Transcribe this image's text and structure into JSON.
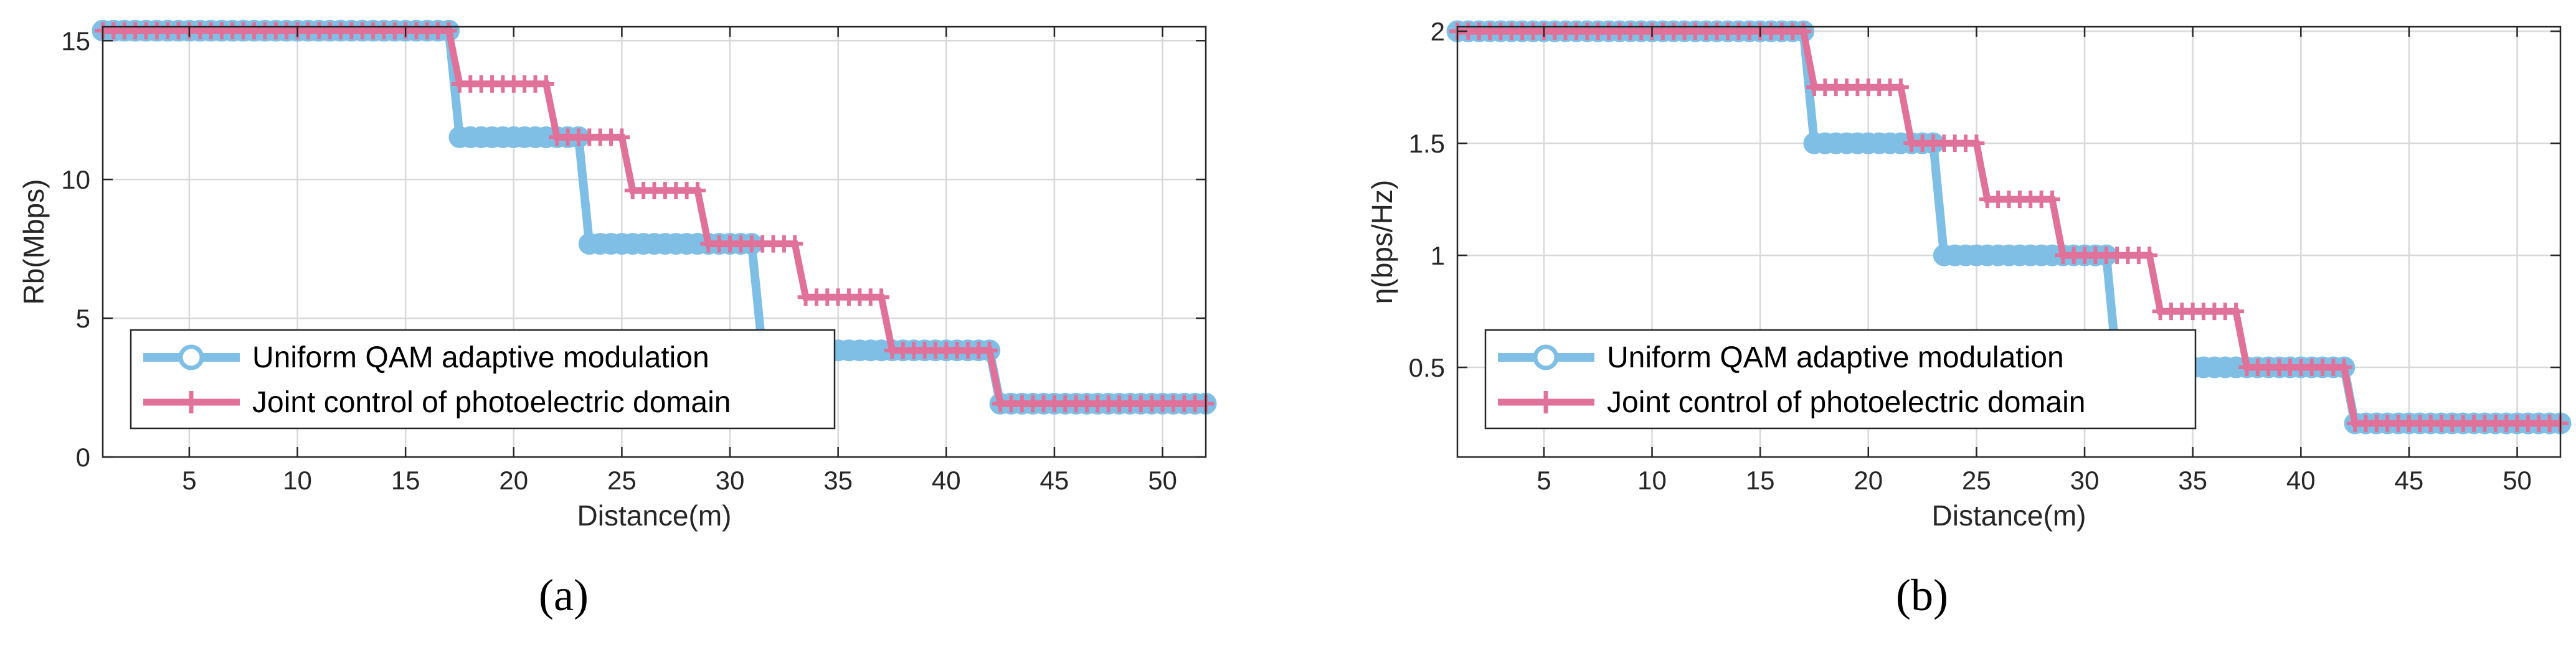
{
  "chart_data": [
    {
      "type": "line",
      "caption": "(a)",
      "xlabel": "Distance(m)",
      "ylabel": "Rb(Mbps)",
      "xlim": [
        1,
        52
      ],
      "ylim": [
        0,
        15.5
      ],
      "xticks": [
        5,
        10,
        15,
        20,
        25,
        30,
        35,
        40,
        45,
        50
      ],
      "yticks": [
        0,
        5,
        10,
        15
      ],
      "grid": true,
      "legend_position": "bottom-left",
      "series": [
        {
          "name": "Uniform QAM adaptive modulation",
          "color": "#7fbfe6",
          "marker": "circle",
          "steps": [
            {
              "from": 1,
              "to": 17,
              "value": 15.36
            },
            {
              "from": 17.5,
              "to": 23,
              "value": 11.52
            },
            {
              "from": 23.5,
              "to": 31,
              "value": 7.68
            },
            {
              "from": 31.5,
              "to": 42,
              "value": 3.84
            },
            {
              "from": 42.5,
              "to": 52,
              "value": 1.92
            }
          ]
        },
        {
          "name": "Joint control of photoelectric domain",
          "color": "#e07299",
          "marker": "plus",
          "steps": [
            {
              "from": 1,
              "to": 17,
              "value": 15.36
            },
            {
              "from": 17.5,
              "to": 21.5,
              "value": 13.44
            },
            {
              "from": 22,
              "to": 25,
              "value": 11.52
            },
            {
              "from": 25.5,
              "to": 28.5,
              "value": 9.6
            },
            {
              "from": 29,
              "to": 33,
              "value": 7.68
            },
            {
              "from": 33.5,
              "to": 37,
              "value": 5.76
            },
            {
              "from": 37.5,
              "to": 42,
              "value": 3.84
            },
            {
              "from": 42.5,
              "to": 52,
              "value": 1.92
            }
          ]
        }
      ]
    },
    {
      "type": "line",
      "caption": "(b)",
      "xlabel": "Distance(m)",
      "ylabel": "η(bps/Hz)",
      "xlim": [
        1,
        52
      ],
      "ylim": [
        0.1,
        2.02
      ],
      "xticks": [
        5,
        10,
        15,
        20,
        25,
        30,
        35,
        40,
        45,
        50
      ],
      "yticks": [
        0.5,
        1,
        1.5,
        2
      ],
      "grid": true,
      "legend_position": "bottom-left",
      "series": [
        {
          "name": "Uniform QAM adaptive modulation",
          "color": "#7fbfe6",
          "marker": "circle",
          "steps": [
            {
              "from": 1,
              "to": 17,
              "value": 2
            },
            {
              "from": 17.5,
              "to": 23,
              "value": 1.5
            },
            {
              "from": 23.5,
              "to": 31,
              "value": 1
            },
            {
              "from": 31.5,
              "to": 42,
              "value": 0.5
            },
            {
              "from": 42.5,
              "to": 52,
              "value": 0.25
            }
          ]
        },
        {
          "name": "Joint control of photoelectric domain",
          "color": "#e07299",
          "marker": "plus",
          "steps": [
            {
              "from": 1,
              "to": 17,
              "value": 2
            },
            {
              "from": 17.5,
              "to": 21.5,
              "value": 1.75
            },
            {
              "from": 22,
              "to": 25,
              "value": 1.5
            },
            {
              "from": 25.5,
              "to": 28.5,
              "value": 1.25
            },
            {
              "from": 29,
              "to": 33,
              "value": 1
            },
            {
              "from": 33.5,
              "to": 37,
              "value": 0.75
            },
            {
              "from": 37.5,
              "to": 42,
              "value": 0.5
            },
            {
              "from": 42.5,
              "to": 52,
              "value": 0.25
            }
          ]
        }
      ]
    }
  ]
}
